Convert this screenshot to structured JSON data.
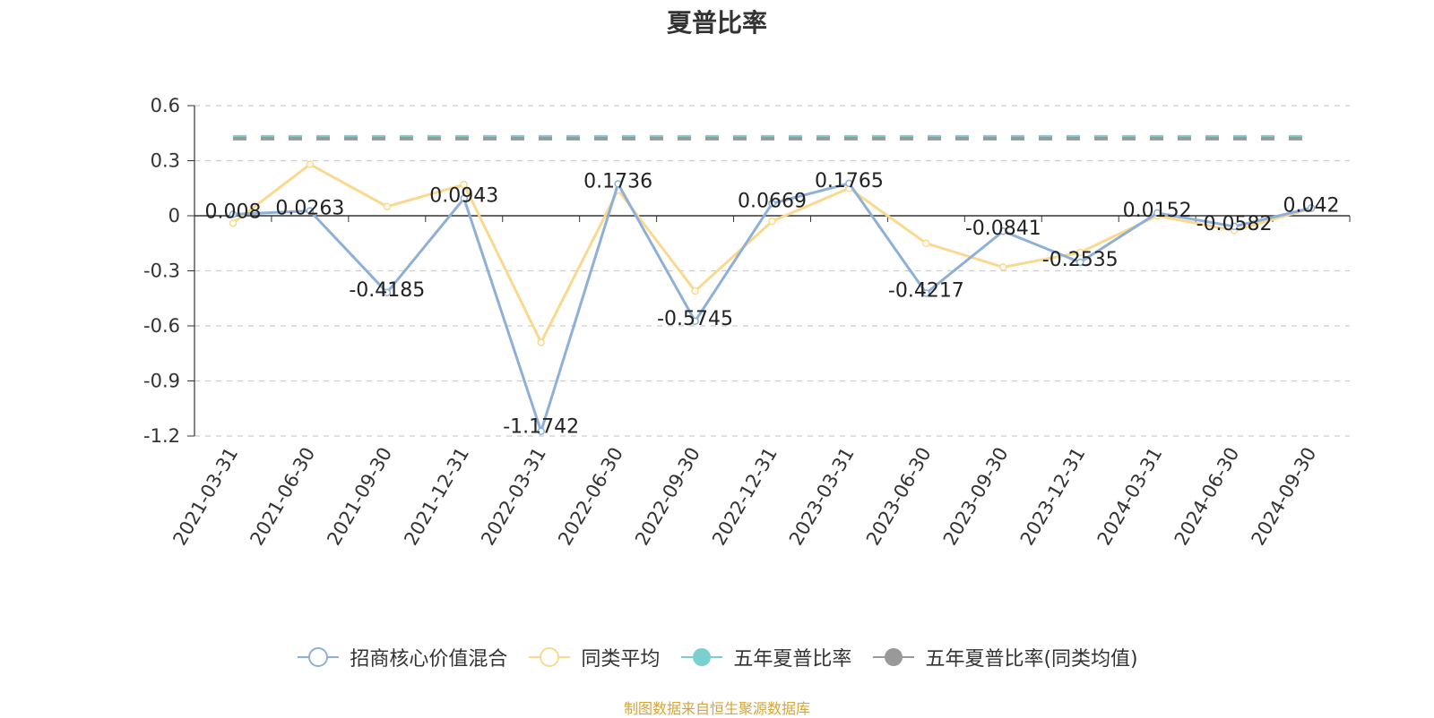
{
  "chart_data": {
    "type": "line",
    "title": "夏普比率",
    "categories": [
      "2021-03-31",
      "2021-06-30",
      "2021-09-30",
      "2021-12-31",
      "2022-03-31",
      "2022-06-30",
      "2022-09-30",
      "2022-12-31",
      "2023-03-31",
      "2023-06-30",
      "2023-09-30",
      "2023-12-31",
      "2024-03-31",
      "2024-06-30",
      "2024-09-30"
    ],
    "ylim": [
      -1.2,
      0.6
    ],
    "yticks": [
      "0.6",
      "0.3",
      "0",
      "-0.3",
      "-0.6",
      "-0.9",
      "-1.2"
    ],
    "grid": true,
    "legend_position": "bottom",
    "series": [
      {
        "name": "招商核心价值混合",
        "color": "#8eb0d8",
        "values": [
          0.008,
          0.0263,
          -0.4185,
          0.0943,
          -1.1742,
          0.1736,
          -0.5745,
          0.0669,
          0.1765,
          -0.4217,
          -0.0841,
          -0.2535,
          0.0152,
          -0.0582,
          0.042
        ],
        "labels": [
          "0.008",
          "0.0263",
          "-0.4185",
          "0.0943",
          "-1.1742",
          "0.1736",
          "-0.5745",
          "0.0669",
          "0.1765",
          "-0.4217",
          "-0.0841",
          "-0.2535",
          "0.0152",
          "-0.0582",
          "0.042"
        ]
      },
      {
        "name": "同类平均",
        "color": "#fad98e",
        "values": [
          -0.04,
          0.28,
          0.05,
          0.17,
          -0.69,
          0.14,
          -0.41,
          -0.03,
          0.15,
          -0.15,
          -0.28,
          -0.2,
          0.0,
          -0.08,
          0.04
        ]
      },
      {
        "name": "五年夏普比率",
        "color": "#7ccfcf",
        "type": "reference",
        "value": 0.43
      },
      {
        "name": "五年夏普比率(同类均值)",
        "color": "#999999",
        "type": "reference",
        "value": 0.42
      }
    ]
  },
  "source_text": "制图数据来自恒生聚源数据库",
  "source_color": "#d4a53a"
}
